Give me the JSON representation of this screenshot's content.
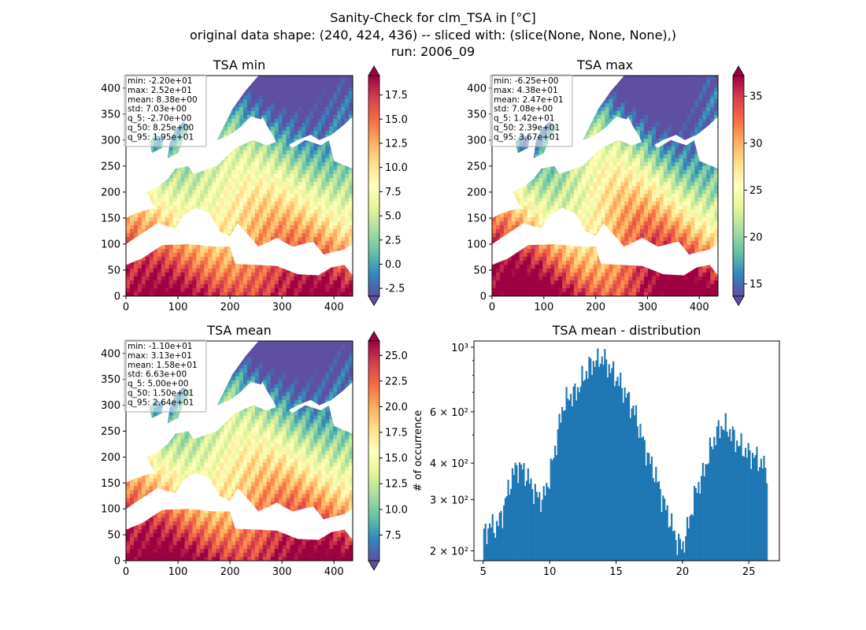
{
  "figure": {
    "title_lines": [
      "Sanity-Check for clm_TSA in [°C]",
      "original data shape: (240, 424, 436) -- sliced with: (slice(None, None, None),)",
      "run: 2006_09"
    ]
  },
  "colors": {
    "hist_bar": "#1f77b4",
    "colormap": "Spectral_r",
    "colormap_stops": [
      "#5e4fa2",
      "#3288bd",
      "#66c2a5",
      "#abdda4",
      "#e6f598",
      "#ffffbf",
      "#fee08b",
      "#fdae61",
      "#f46d43",
      "#d53e4f",
      "#9e0142"
    ]
  },
  "chart_data": [
    {
      "type": "heatmap",
      "title": "TSA min",
      "xlim": [
        0,
        436
      ],
      "ylim": [
        0,
        424
      ],
      "xticks": [
        "0",
        "100",
        "200",
        "300",
        "400"
      ],
      "yticks": [
        "0",
        "50",
        "100",
        "150",
        "200",
        "250",
        "300",
        "350",
        "400"
      ],
      "colorbar": {
        "min": -3.3,
        "max": 19.5,
        "extend": "both",
        "ticks": [
          "-2.5",
          "0.0",
          "2.5",
          "5.0",
          "7.5",
          "10.0",
          "12.5",
          "15.0",
          "17.5"
        ]
      },
      "stats": [
        "min: -2.20e+01",
        "max: 2.52e+01",
        "mean: 8.38e+00",
        "std: 7.03e+00",
        "q_5: -2.70e+00",
        "q_50: 8.25e+00",
        "q_95: 1.95e+01"
      ]
    },
    {
      "type": "heatmap",
      "title": "TSA max",
      "xlim": [
        0,
        436
      ],
      "ylim": [
        0,
        424
      ],
      "xticks": [
        "0",
        "100",
        "200",
        "300",
        "400"
      ],
      "yticks": [
        "0",
        "50",
        "100",
        "150",
        "200",
        "250",
        "300",
        "350",
        "400"
      ],
      "colorbar": {
        "min": 13.7,
        "max": 37.2,
        "extend": "both",
        "ticks": [
          "15",
          "20",
          "25",
          "30",
          "35"
        ]
      },
      "stats": [
        "min: -6.25e+00",
        "max: 4.38e+01",
        "mean: 2.47e+01",
        "std: 7.08e+00",
        "q_5: 1.42e+01",
        "q_50: 2.39e+01",
        "q_95: 3.67e+01"
      ]
    },
    {
      "type": "heatmap",
      "title": "TSA mean",
      "xlim": [
        0,
        436
      ],
      "ylim": [
        0,
        424
      ],
      "xticks": [
        "0",
        "100",
        "200",
        "300",
        "400"
      ],
      "yticks": [
        "0",
        "50",
        "100",
        "150",
        "200",
        "250",
        "300",
        "350",
        "400"
      ],
      "colorbar": {
        "min": 5.0,
        "max": 26.4,
        "extend": "both",
        "ticks": [
          "7.5",
          "10.0",
          "12.5",
          "15.0",
          "17.5",
          "20.0",
          "22.5",
          "25.0"
        ]
      },
      "stats": [
        "min: -1.10e+01",
        "max: 3.13e+01",
        "mean: 1.58e+01",
        "std: 6.63e+00",
        "q_5: 5.00e+00",
        "q_50: 1.50e+01",
        "q_95: 2.64e+01"
      ]
    },
    {
      "type": "bar",
      "title": "TSA mean - distribution",
      "ylabel": "# of occurrence",
      "yscale": "log",
      "xlim": [
        4.3,
        27.3
      ],
      "ylim": [
        185,
        1050
      ],
      "xticks": [
        "5",
        "10",
        "15",
        "20",
        "25"
      ],
      "yticks": [
        "2 × 10²",
        "3 × 10²",
        "4 × 10²",
        "6 × 10²",
        "10³"
      ],
      "bin_range": [
        5.0,
        26.4
      ],
      "x": [
        5.0,
        5.5,
        6.0,
        6.5,
        7.0,
        7.5,
        8.0,
        8.5,
        9.0,
        9.5,
        10.0,
        10.5,
        11.0,
        11.5,
        12.0,
        12.5,
        13.0,
        13.5,
        14.0,
        14.5,
        15.0,
        15.5,
        16.0,
        16.5,
        17.0,
        17.5,
        18.0,
        18.5,
        19.0,
        19.5,
        20.0,
        20.5,
        21.0,
        21.5,
        22.0,
        22.5,
        23.0,
        23.5,
        24.0,
        24.5,
        25.0,
        25.5,
        26.0,
        26.4
      ],
      "values": [
        225,
        245,
        240,
        275,
        340,
        390,
        380,
        345,
        310,
        300,
        360,
        470,
        630,
        680,
        700,
        780,
        860,
        900,
        920,
        850,
        790,
        720,
        650,
        580,
        480,
        410,
        360,
        300,
        260,
        220,
        205,
        250,
        320,
        360,
        430,
        500,
        540,
        520,
        480,
        450,
        430,
        420,
        395,
        380
      ]
    }
  ]
}
